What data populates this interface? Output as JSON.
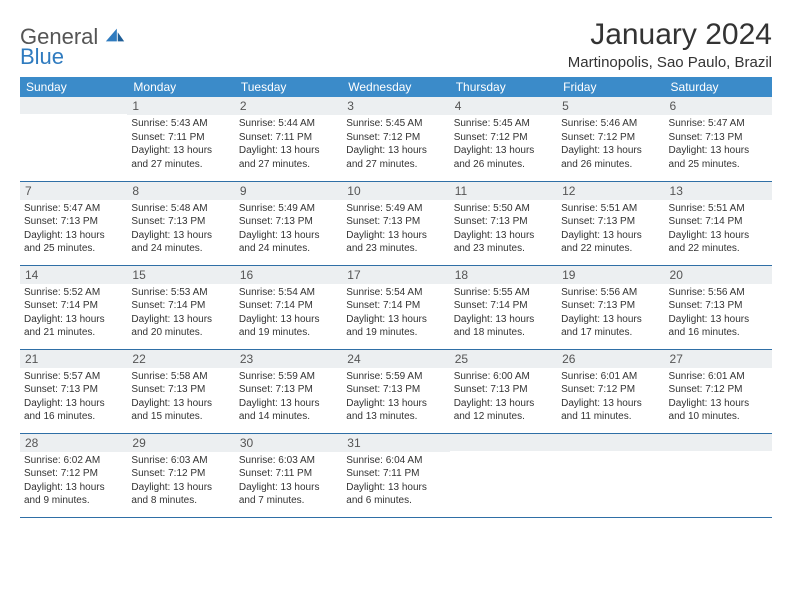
{
  "brand": {
    "line1": "General",
    "line2": "Blue"
  },
  "title": "January 2024",
  "location": "Martinopolis, Sao Paulo, Brazil",
  "colors": {
    "header_bg": "#3b8bc9",
    "daynum_bg": "#eceff1",
    "rule": "#2f6fa6",
    "brand_blue": "#2f7bbf"
  },
  "weekdays": [
    "Sunday",
    "Monday",
    "Tuesday",
    "Wednesday",
    "Thursday",
    "Friday",
    "Saturday"
  ],
  "weeks": [
    [
      {
        "n": "",
        "sr": "",
        "ss": "",
        "dl": ""
      },
      {
        "n": "1",
        "sr": "Sunrise: 5:43 AM",
        "ss": "Sunset: 7:11 PM",
        "dl": "Daylight: 13 hours and 27 minutes."
      },
      {
        "n": "2",
        "sr": "Sunrise: 5:44 AM",
        "ss": "Sunset: 7:11 PM",
        "dl": "Daylight: 13 hours and 27 minutes."
      },
      {
        "n": "3",
        "sr": "Sunrise: 5:45 AM",
        "ss": "Sunset: 7:12 PM",
        "dl": "Daylight: 13 hours and 27 minutes."
      },
      {
        "n": "4",
        "sr": "Sunrise: 5:45 AM",
        "ss": "Sunset: 7:12 PM",
        "dl": "Daylight: 13 hours and 26 minutes."
      },
      {
        "n": "5",
        "sr": "Sunrise: 5:46 AM",
        "ss": "Sunset: 7:12 PM",
        "dl": "Daylight: 13 hours and 26 minutes."
      },
      {
        "n": "6",
        "sr": "Sunrise: 5:47 AM",
        "ss": "Sunset: 7:13 PM",
        "dl": "Daylight: 13 hours and 25 minutes."
      }
    ],
    [
      {
        "n": "7",
        "sr": "Sunrise: 5:47 AM",
        "ss": "Sunset: 7:13 PM",
        "dl": "Daylight: 13 hours and 25 minutes."
      },
      {
        "n": "8",
        "sr": "Sunrise: 5:48 AM",
        "ss": "Sunset: 7:13 PM",
        "dl": "Daylight: 13 hours and 24 minutes."
      },
      {
        "n": "9",
        "sr": "Sunrise: 5:49 AM",
        "ss": "Sunset: 7:13 PM",
        "dl": "Daylight: 13 hours and 24 minutes."
      },
      {
        "n": "10",
        "sr": "Sunrise: 5:49 AM",
        "ss": "Sunset: 7:13 PM",
        "dl": "Daylight: 13 hours and 23 minutes."
      },
      {
        "n": "11",
        "sr": "Sunrise: 5:50 AM",
        "ss": "Sunset: 7:13 PM",
        "dl": "Daylight: 13 hours and 23 minutes."
      },
      {
        "n": "12",
        "sr": "Sunrise: 5:51 AM",
        "ss": "Sunset: 7:13 PM",
        "dl": "Daylight: 13 hours and 22 minutes."
      },
      {
        "n": "13",
        "sr": "Sunrise: 5:51 AM",
        "ss": "Sunset: 7:14 PM",
        "dl": "Daylight: 13 hours and 22 minutes."
      }
    ],
    [
      {
        "n": "14",
        "sr": "Sunrise: 5:52 AM",
        "ss": "Sunset: 7:14 PM",
        "dl": "Daylight: 13 hours and 21 minutes."
      },
      {
        "n": "15",
        "sr": "Sunrise: 5:53 AM",
        "ss": "Sunset: 7:14 PM",
        "dl": "Daylight: 13 hours and 20 minutes."
      },
      {
        "n": "16",
        "sr": "Sunrise: 5:54 AM",
        "ss": "Sunset: 7:14 PM",
        "dl": "Daylight: 13 hours and 19 minutes."
      },
      {
        "n": "17",
        "sr": "Sunrise: 5:54 AM",
        "ss": "Sunset: 7:14 PM",
        "dl": "Daylight: 13 hours and 19 minutes."
      },
      {
        "n": "18",
        "sr": "Sunrise: 5:55 AM",
        "ss": "Sunset: 7:14 PM",
        "dl": "Daylight: 13 hours and 18 minutes."
      },
      {
        "n": "19",
        "sr": "Sunrise: 5:56 AM",
        "ss": "Sunset: 7:13 PM",
        "dl": "Daylight: 13 hours and 17 minutes."
      },
      {
        "n": "20",
        "sr": "Sunrise: 5:56 AM",
        "ss": "Sunset: 7:13 PM",
        "dl": "Daylight: 13 hours and 16 minutes."
      }
    ],
    [
      {
        "n": "21",
        "sr": "Sunrise: 5:57 AM",
        "ss": "Sunset: 7:13 PM",
        "dl": "Daylight: 13 hours and 16 minutes."
      },
      {
        "n": "22",
        "sr": "Sunrise: 5:58 AM",
        "ss": "Sunset: 7:13 PM",
        "dl": "Daylight: 13 hours and 15 minutes."
      },
      {
        "n": "23",
        "sr": "Sunrise: 5:59 AM",
        "ss": "Sunset: 7:13 PM",
        "dl": "Daylight: 13 hours and 14 minutes."
      },
      {
        "n": "24",
        "sr": "Sunrise: 5:59 AM",
        "ss": "Sunset: 7:13 PM",
        "dl": "Daylight: 13 hours and 13 minutes."
      },
      {
        "n": "25",
        "sr": "Sunrise: 6:00 AM",
        "ss": "Sunset: 7:13 PM",
        "dl": "Daylight: 13 hours and 12 minutes."
      },
      {
        "n": "26",
        "sr": "Sunrise: 6:01 AM",
        "ss": "Sunset: 7:12 PM",
        "dl": "Daylight: 13 hours and 11 minutes."
      },
      {
        "n": "27",
        "sr": "Sunrise: 6:01 AM",
        "ss": "Sunset: 7:12 PM",
        "dl": "Daylight: 13 hours and 10 minutes."
      }
    ],
    [
      {
        "n": "28",
        "sr": "Sunrise: 6:02 AM",
        "ss": "Sunset: 7:12 PM",
        "dl": "Daylight: 13 hours and 9 minutes."
      },
      {
        "n": "29",
        "sr": "Sunrise: 6:03 AM",
        "ss": "Sunset: 7:12 PM",
        "dl": "Daylight: 13 hours and 8 minutes."
      },
      {
        "n": "30",
        "sr": "Sunrise: 6:03 AM",
        "ss": "Sunset: 7:11 PM",
        "dl": "Daylight: 13 hours and 7 minutes."
      },
      {
        "n": "31",
        "sr": "Sunrise: 6:04 AM",
        "ss": "Sunset: 7:11 PM",
        "dl": "Daylight: 13 hours and 6 minutes."
      },
      {
        "n": "",
        "sr": "",
        "ss": "",
        "dl": ""
      },
      {
        "n": "",
        "sr": "",
        "ss": "",
        "dl": ""
      },
      {
        "n": "",
        "sr": "",
        "ss": "",
        "dl": ""
      }
    ]
  ]
}
